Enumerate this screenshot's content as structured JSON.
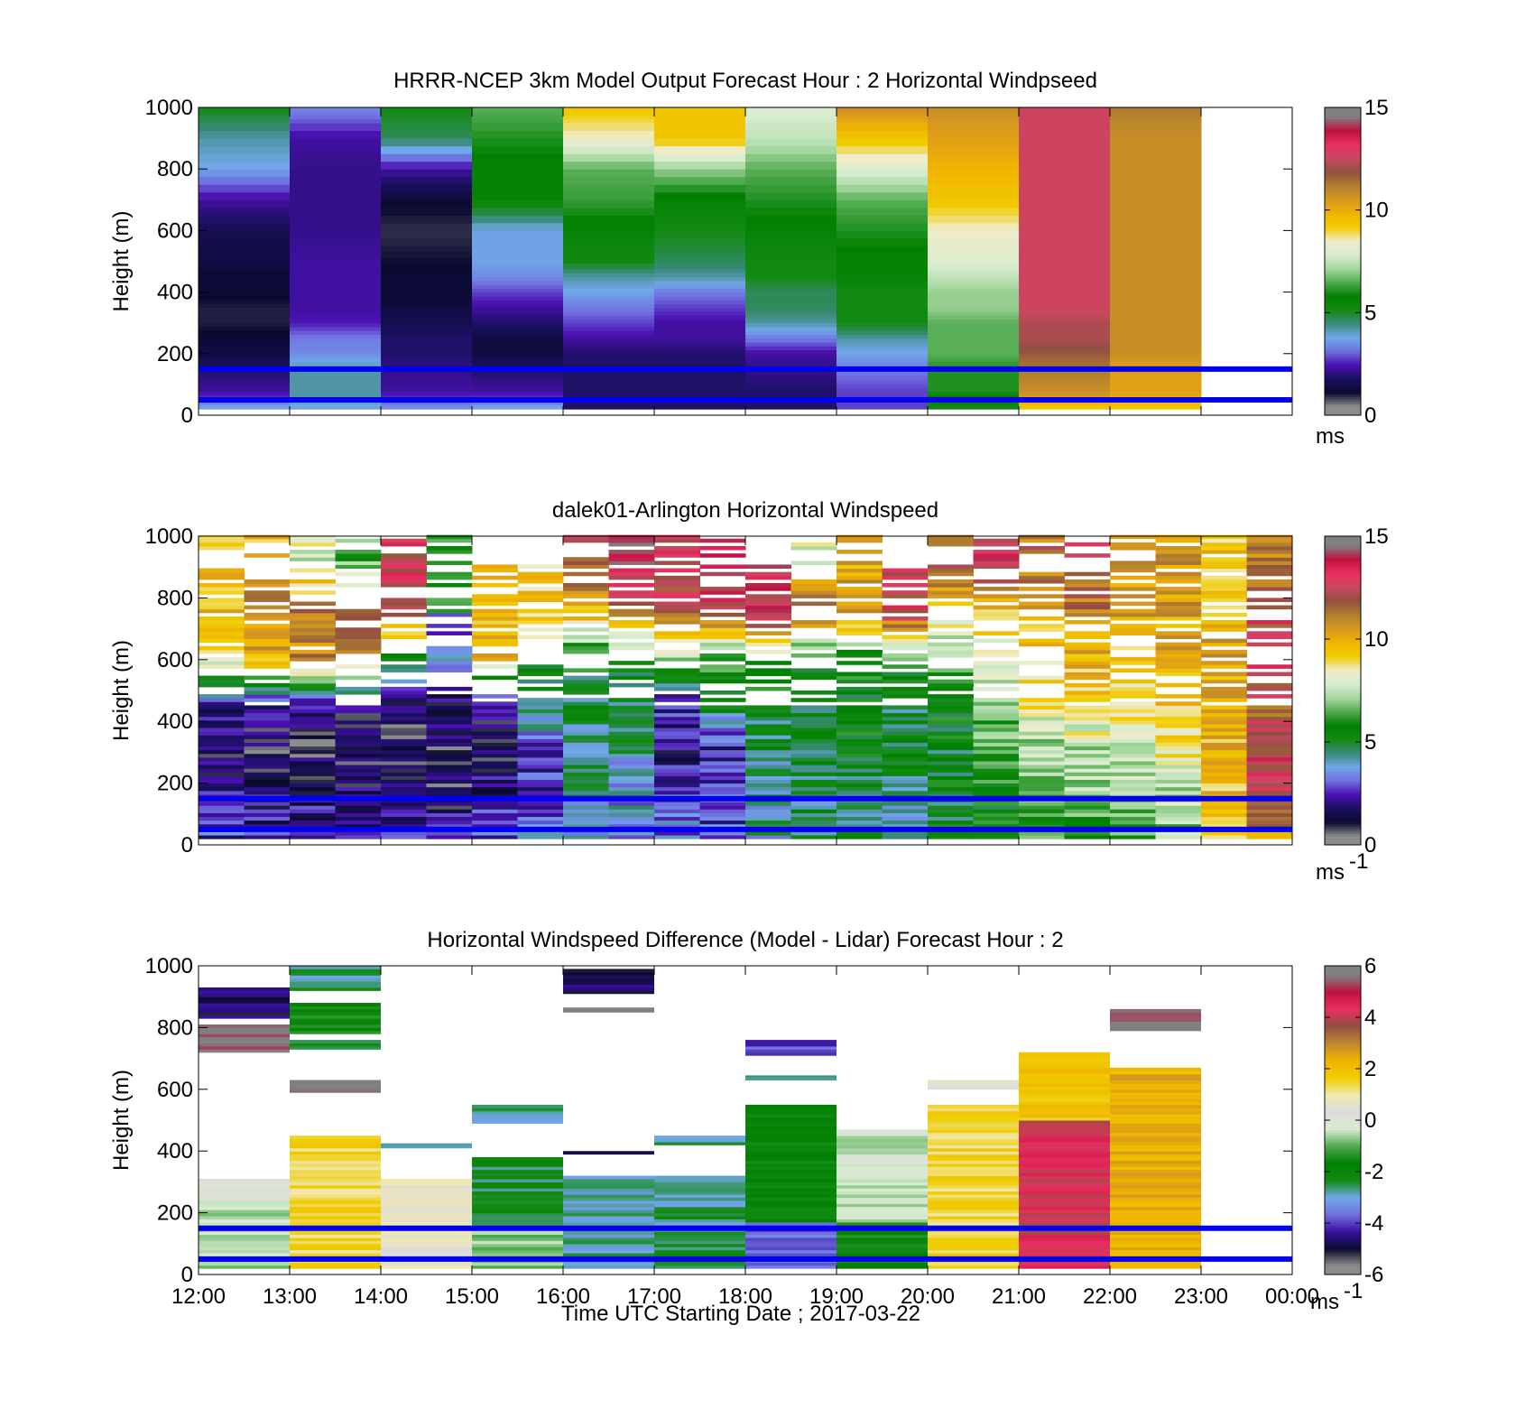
{
  "figure": {
    "xlabel": "Time UTC  Starting Date ; 2017-03-22",
    "x_tick_labels": [
      "12:00",
      "13:00",
      "14:00",
      "15:00",
      "16:00",
      "17:00",
      "18:00",
      "19:00",
      "20:00",
      "21:00",
      "22:00",
      "23:00",
      "00:00"
    ]
  },
  "colors": {
    "speed_colormap": [
      "#8c8c8c",
      "#0a0a30",
      "#1a1060",
      "#4a10b0",
      "#7070e0",
      "#70a8e8",
      "#3a8a7a",
      "#128a12",
      "#008000",
      "#50aa50",
      "#a8d8a0",
      "#d8ecd0",
      "#f0ecc8",
      "#f0cc00",
      "#f0b400",
      "#d89820",
      "#b08030",
      "#905040",
      "#c84860",
      "#e83060",
      "#c01040",
      "#808080"
    ],
    "diff_colormap": [
      "#8c8c8c",
      "#0a0a30",
      "#3a10a0",
      "#7070e0",
      "#70a8e8",
      "#128a12",
      "#008000",
      "#50aa50",
      "#d8ecd0",
      "#dcdcdc",
      "#f0e8b0",
      "#f0cc00",
      "#f0b400",
      "#c08830",
      "#905040",
      "#e83060",
      "#c01040",
      "#808080"
    ],
    "reference_lines": "#0000ee"
  },
  "chart_data": [
    {
      "type": "heatmap",
      "title": "HRRR-NCEP 3km Model Output   Forecast Hour : 2 Horizontal Windpseed",
      "ylabel": "Height (m)",
      "xlim": [
        "12:00",
        "00:00"
      ],
      "ylim": [
        0,
        1000
      ],
      "y_ticks": [
        0,
        200,
        400,
        600,
        800,
        1000
      ],
      "colorbar": {
        "min": 0,
        "max": 15,
        "ticks": [
          0,
          5,
          10,
          15
        ],
        "unit": "ms",
        "unit_superscript": ""
      },
      "reference_lines_m": [
        50,
        150
      ],
      "x_hours": [
        12,
        13,
        14,
        15,
        16,
        17,
        18,
        19,
        20,
        21,
        22
      ],
      "profile_heights_m": [
        30,
        50,
        80,
        150,
        200,
        250,
        300,
        350,
        400,
        450,
        500,
        600,
        700,
        800,
        900,
        1000
      ],
      "values": [
        [
          3.5,
          2.5,
          2.0,
          1.5,
          1.0,
          0.8,
          0.6,
          0.6,
          0.8,
          0.8,
          1.0,
          1.2,
          2.0,
          3.5,
          4.0,
          5.0
        ],
        [
          3.5,
          4.0,
          4.0,
          4.0,
          3.2,
          3.0,
          2.2,
          2.0,
          2.0,
          2.0,
          2.0,
          1.8,
          1.8,
          1.8,
          2.0,
          3.2
        ],
        [
          3.2,
          2.5,
          2.0,
          1.8,
          1.5,
          1.5,
          1.2,
          1.0,
          0.8,
          0.8,
          0.7,
          0.5,
          0.8,
          2.0,
          4.5,
          5.0
        ],
        [
          3.5,
          2.5,
          2.0,
          1.5,
          1.0,
          1.0,
          1.5,
          2.0,
          2.5,
          3.2,
          3.5,
          3.5,
          5.5,
          5.5,
          6.0,
          6.5
        ],
        [
          1.5,
          1.5,
          1.5,
          1.5,
          1.5,
          2.0,
          2.5,
          3.0,
          3.5,
          4.0,
          5.0,
          5.5,
          6.2,
          6.5,
          8.5,
          9.5
        ],
        [
          1.5,
          1.5,
          1.5,
          1.5,
          1.5,
          2.0,
          2.0,
          2.5,
          3.0,
          4.0,
          4.5,
          5.0,
          5.5,
          7.0,
          9.5,
          9.5
        ],
        [
          1.5,
          1.5,
          1.5,
          1.8,
          2.0,
          3.0,
          4.0,
          4.5,
          4.5,
          5.0,
          5.0,
          5.5,
          6.0,
          6.5,
          7.5,
          8.0
        ],
        [
          2.5,
          2.5,
          2.5,
          3.0,
          3.5,
          4.0,
          5.0,
          5.0,
          5.0,
          5.5,
          5.5,
          6.0,
          6.5,
          8.0,
          9.5,
          11.0
        ],
        [
          5.0,
          5.5,
          6.0,
          6.0,
          6.5,
          6.5,
          6.5,
          7.0,
          7.0,
          7.5,
          8.0,
          8.5,
          9.5,
          10.0,
          10.5,
          11.0
        ],
        [
          9.5,
          10.5,
          11.0,
          11.5,
          12.0,
          12.5,
          12.5,
          13.0,
          13.0,
          13.0,
          13.0,
          13.0,
          13.0,
          13.0,
          13.0,
          13.0
        ],
        [
          9.5,
          10.0,
          10.5,
          10.5,
          11.0,
          11.0,
          11.0,
          11.0,
          11.0,
          11.0,
          11.0,
          11.0,
          11.0,
          11.0,
          11.0,
          11.5
        ]
      ]
    },
    {
      "type": "heatmap",
      "title": "dalek01-Arlington  Horizontal Windspeed",
      "ylabel": "Height (m)",
      "xlim": [
        "12:00",
        "00:00"
      ],
      "ylim": [
        0,
        1000
      ],
      "y_ticks": [
        0,
        200,
        400,
        600,
        800,
        1000
      ],
      "colorbar": {
        "min": 0,
        "max": 15,
        "ticks": [
          0,
          5,
          10,
          15
        ],
        "unit": "ms",
        "unit_superscript": "-1"
      },
      "reference_lines_m": [
        50,
        150
      ],
      "x_hours": [
        12.0,
        12.5,
        13.0,
        13.5,
        14.0,
        14.5,
        15.0,
        15.5,
        16.0,
        16.5,
        17.0,
        17.5,
        18.0,
        18.5,
        19.0,
        19.5,
        20.0,
        20.5,
        21.0,
        21.5,
        22.0,
        22.5,
        23.0,
        23.5
      ],
      "profile_heights_m": [
        50,
        150,
        300,
        450,
        600,
        750,
        900
      ],
      "values": [
        [
          2.5,
          2.0,
          1.0,
          2.0,
          9.0,
          10.0,
          9.5
        ],
        [
          2.0,
          1.5,
          1.0,
          1.5,
          10.0,
          11.5,
          9.5
        ],
        [
          2.0,
          1.5,
          0.8,
          1.5,
          11.0,
          11.5,
          8.0
        ],
        [
          2.0,
          1.5,
          0.8,
          1.2,
          11.0,
          12.0,
          6.5
        ],
        [
          2.0,
          1.0,
          0.8,
          1.2,
          5.0,
          13.0,
          13.0
        ],
        [
          2.0,
          1.0,
          0.8,
          1.5,
          3.0,
          null,
          5.5
        ],
        [
          2.5,
          1.5,
          1.2,
          1.5,
          10.0,
          9.5,
          null
        ],
        [
          3.0,
          2.5,
          2.5,
          4.5,
          6.0,
          9.5,
          null
        ],
        [
          4.0,
          4.0,
          4.5,
          4.5,
          5.5,
          10.0,
          12.0
        ],
        [
          3.5,
          3.5,
          4.0,
          4.5,
          5.5,
          12.0,
          14.0
        ],
        [
          3.0,
          3.0,
          1.5,
          2.0,
          7.0,
          12.5,
          13.0
        ],
        [
          2.5,
          2.5,
          2.0,
          5.0,
          6.0,
          12.5,
          14.0
        ],
        [
          4.0,
          4.0,
          4.5,
          5.0,
          6.5,
          13.5,
          null
        ],
        [
          4.5,
          4.5,
          5.0,
          5.0,
          5.5,
          12.0,
          8.0
        ],
        [
          4.5,
          4.5,
          5.5,
          5.0,
          5.5,
          11.0,
          10.0
        ],
        [
          4.0,
          4.0,
          5.0,
          4.5,
          6.0,
          13.0,
          null
        ],
        [
          5.0,
          5.0,
          5.0,
          5.5,
          6.5,
          9.5,
          12.0
        ],
        [
          5.5,
          5.5,
          6.0,
          7.0,
          8.0,
          9.5,
          13.5
        ],
        [
          6.0,
          6.5,
          7.0,
          8.5,
          9.5,
          10.0,
          11.5
        ],
        [
          6.5,
          7.0,
          7.5,
          9.0,
          10.0,
          11.0,
          12.5
        ],
        [
          6.5,
          7.0,
          8.0,
          9.0,
          9.5,
          10.5,
          11.0
        ],
        [
          7.0,
          7.5,
          8.5,
          9.5,
          10.0,
          10.5,
          11.0
        ],
        [
          9.0,
          9.5,
          10.0,
          10.0,
          10.5,
          10.0,
          9.5
        ],
        [
          11.0,
          12.5,
          13.0,
          12.0,
          13.5,
          12.5,
          11.5
        ]
      ]
    },
    {
      "type": "heatmap",
      "title": "Horizontal Windspeed Difference (Model - Lidar) Forecast Hour : 2",
      "ylabel": "Height (m)",
      "xlim": [
        "12:00",
        "00:00"
      ],
      "ylim": [
        0,
        1000
      ],
      "y_ticks": [
        0,
        200,
        400,
        600,
        800,
        1000
      ],
      "colorbar": {
        "min": -6,
        "max": 6,
        "ticks": [
          -6,
          -4,
          -2,
          0,
          2,
          4,
          6
        ],
        "unit": "ms",
        "unit_superscript": "-1"
      },
      "reference_lines_m": [
        50,
        150
      ],
      "x_hours": [
        12,
        13,
        14,
        15,
        16,
        17,
        18,
        19,
        20,
        21,
        22
      ],
      "cells": [
        {
          "hour": 12,
          "bottom": 20,
          "top": 240,
          "value": -0.5
        },
        {
          "hour": 12,
          "bottom": 240,
          "top": 310,
          "value": 0.2
        },
        {
          "hour": 12,
          "bottom": 720,
          "top": 810,
          "value": 6.0
        },
        {
          "hour": 12,
          "bottom": 830,
          "top": 930,
          "value": -5.0
        },
        {
          "hour": 13,
          "bottom": 20,
          "top": 450,
          "value": 1.5
        },
        {
          "hour": 13,
          "bottom": 590,
          "top": 630,
          "value": 6.0
        },
        {
          "hour": 13,
          "bottom": 730,
          "top": 760,
          "value": -2.5
        },
        {
          "hour": 13,
          "bottom": 780,
          "top": 880,
          "value": -1.8
        },
        {
          "hour": 13,
          "bottom": 920,
          "top": 1000,
          "value": -2.8
        },
        {
          "hour": 14,
          "bottom": 20,
          "top": 310,
          "value": 0.8
        },
        {
          "hour": 14,
          "bottom": 410,
          "top": 425,
          "value": -3.0
        },
        {
          "hour": 15,
          "bottom": 20,
          "top": 160,
          "value": -0.8
        },
        {
          "hour": 15,
          "bottom": 160,
          "top": 380,
          "value": -2.5
        },
        {
          "hour": 15,
          "bottom": 490,
          "top": 550,
          "value": -3.0
        },
        {
          "hour": 16,
          "bottom": 20,
          "top": 320,
          "value": -3.0
        },
        {
          "hour": 16,
          "bottom": 390,
          "top": 400,
          "value": -4.8
        },
        {
          "hour": 16,
          "bottom": 850,
          "top": 865,
          "value": 6.0
        },
        {
          "hour": 16,
          "bottom": 910,
          "top": 990,
          "value": -5.0
        },
        {
          "hour": 17,
          "bottom": 20,
          "top": 320,
          "value": -2.8
        },
        {
          "hour": 17,
          "bottom": 420,
          "top": 450,
          "value": -2.8
        },
        {
          "hour": 18,
          "bottom": 20,
          "top": 170,
          "value": -4.0
        },
        {
          "hour": 18,
          "bottom": 170,
          "top": 550,
          "value": -2.0
        },
        {
          "hour": 18,
          "bottom": 630,
          "top": 645,
          "value": -3.0
        },
        {
          "hour": 18,
          "bottom": 710,
          "top": 760,
          "value": -4.2
        },
        {
          "hour": 19,
          "bottom": 20,
          "top": 170,
          "value": -1.8
        },
        {
          "hour": 19,
          "bottom": 170,
          "top": 470,
          "value": -0.3
        },
        {
          "hour": 20,
          "bottom": 20,
          "top": 550,
          "value": 1.5
        },
        {
          "hour": 20,
          "bottom": 600,
          "top": 630,
          "value": 0.5
        },
        {
          "hour": 21,
          "bottom": 20,
          "top": 500,
          "value": 4.5
        },
        {
          "hour": 21,
          "bottom": 500,
          "top": 720,
          "value": 2.0
        },
        {
          "hour": 22,
          "bottom": 20,
          "top": 670,
          "value": 2.5
        },
        {
          "hour": 22,
          "bottom": 790,
          "top": 860,
          "value": 6.0
        }
      ]
    }
  ]
}
